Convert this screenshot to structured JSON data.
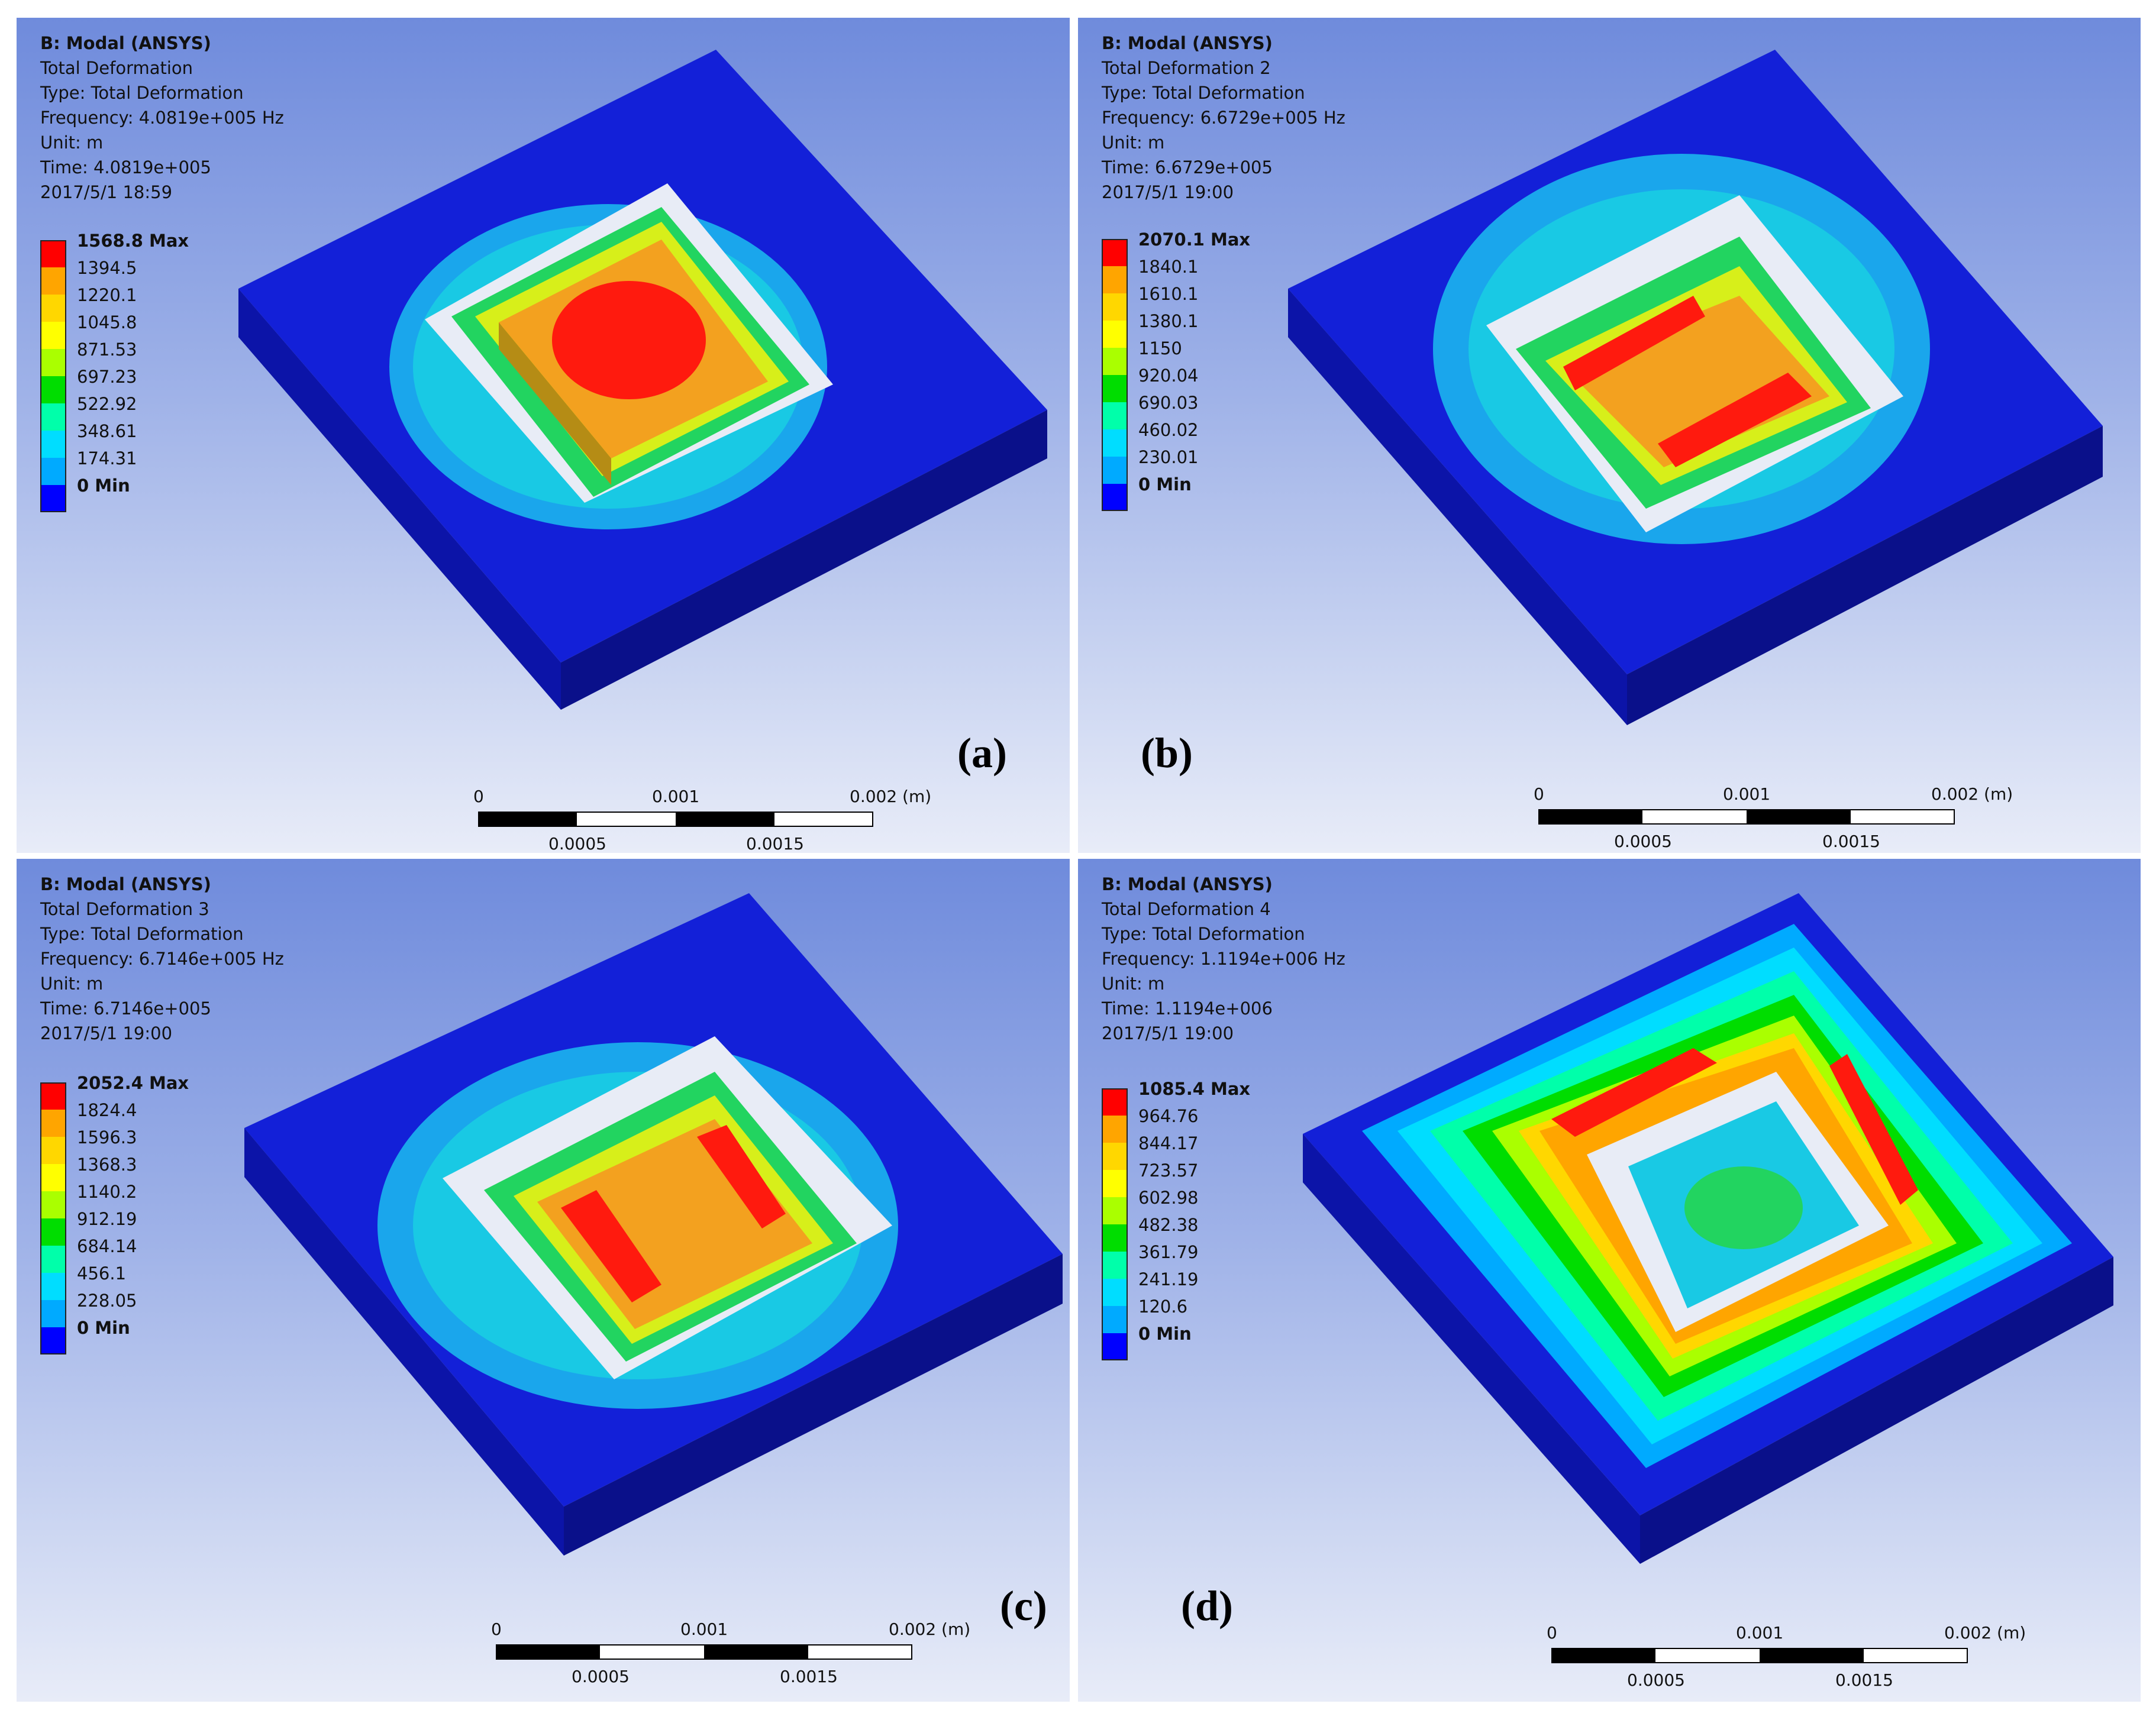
{
  "panels": [
    {
      "id": "a",
      "tag": "(a)",
      "header": {
        "title": "B: Modal (ANSYS)",
        "lines": [
          "Total Deformation",
          "Type: Total Deformation",
          "Frequency: 4.0819e+005 Hz",
          "Unit: m",
          "Time: 4.0819e+005",
          "2017/5/1 18:59"
        ]
      },
      "legend": [
        "1568.8 Max",
        "1394.5",
        "1220.1",
        "1045.8",
        "871.53",
        "697.23",
        "522.92",
        "348.61",
        "174.31",
        "0 Min"
      ]
    },
    {
      "id": "b",
      "tag": "(b)",
      "header": {
        "title": "B: Modal (ANSYS)",
        "lines": [
          "Total Deformation 2",
          "Type: Total Deformation",
          "Frequency: 6.6729e+005 Hz",
          "Unit: m",
          "Time: 6.6729e+005",
          "2017/5/1 19:00"
        ]
      },
      "legend": [
        "2070.1 Max",
        "1840.1",
        "1610.1",
        "1380.1",
        "1150",
        "920.04",
        "690.03",
        "460.02",
        "230.01",
        "0 Min"
      ]
    },
    {
      "id": "c",
      "tag": "(c)",
      "header": {
        "title": "B: Modal (ANSYS)",
        "lines": [
          "Total Deformation 3",
          "Type: Total Deformation",
          "Frequency: 6.7146e+005 Hz",
          "Unit: m",
          "Time: 6.7146e+005",
          "2017/5/1 19:00"
        ]
      },
      "legend": [
        "2052.4 Max",
        "1824.4",
        "1596.3",
        "1368.3",
        "1140.2",
        "912.19",
        "684.14",
        "456.1",
        "228.05",
        "0 Min"
      ]
    },
    {
      "id": "d",
      "tag": "(d)",
      "header": {
        "title": "B: Modal (ANSYS)",
        "lines": [
          "Total Deformation 4",
          "Type: Total Deformation",
          "Frequency: 1.1194e+006 Hz",
          "Unit: m",
          "Time: 1.1194e+006",
          "2017/5/1 19:00"
        ]
      },
      "legend": [
        "1085.4 Max",
        "964.76",
        "844.17",
        "723.57",
        "602.98",
        "482.38",
        "361.79",
        "241.19",
        "120.6",
        "0 Min"
      ]
    }
  ],
  "legend_colors": [
    "#ff0000",
    "#ffa500",
    "#ffd700",
    "#ffff00",
    "#aaff00",
    "#00dd00",
    "#00ffaa",
    "#00ddff",
    "#00aaff",
    "#0000ff"
  ],
  "scale_bar": {
    "top_ticks": [
      "0",
      "0.001",
      "0.002 (m)"
    ],
    "bottom_ticks": [
      "0.0005",
      "0.0015"
    ]
  },
  "colors": {
    "plate": "#1320d8",
    "plate_side": "#0c14a8",
    "plate_front": "#0a108a"
  }
}
